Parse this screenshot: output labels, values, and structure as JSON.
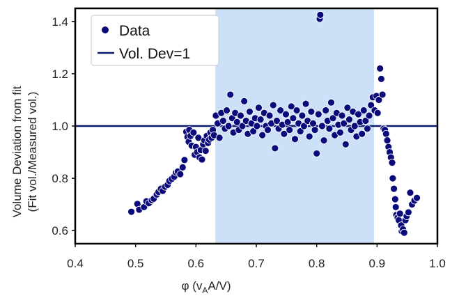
{
  "chart_data": {
    "type": "scatter",
    "xlabel_main": "φ (v",
    "xlabel_sub": "A",
    "xlabel_tail": "A/V)",
    "ylabel_line1": "Volume Deviation from fit",
    "ylabel_line2": "(Fit vol./Measured vol.)",
    "xlim": [
      0.4,
      1.0
    ],
    "ylim": [
      0.55,
      1.45
    ],
    "x_ticks": [
      0.4,
      0.5,
      0.6,
      0.7,
      0.8,
      0.9,
      1.0
    ],
    "x_tick_labels": [
      "0.4",
      "0.5",
      "0.6",
      "0.7",
      "0.8",
      "0.9",
      "1.0"
    ],
    "y_ticks": [
      0.6,
      0.8,
      1.0,
      1.2,
      1.4
    ],
    "y_tick_labels": [
      "0.6",
      "0.8",
      "1.0",
      "1.2",
      "1.4"
    ],
    "shaded_region": {
      "x_start": 0.632,
      "x_end": 0.895,
      "color": "#cce0f7"
    },
    "reference_line": {
      "y": 1.0,
      "name": "Vol. Dev=1",
      "color": "#0b1a6e"
    },
    "series": [
      {
        "name": "Data",
        "color": "#0a0a7a",
        "points": [
          [
            0.493,
            0.672
          ],
          [
            0.503,
            0.702
          ],
          [
            0.506,
            0.68
          ],
          [
            0.514,
            0.69
          ],
          [
            0.518,
            0.712
          ],
          [
            0.522,
            0.705
          ],
          [
            0.527,
            0.716
          ],
          [
            0.53,
            0.722
          ],
          [
            0.535,
            0.738
          ],
          [
            0.538,
            0.748
          ],
          [
            0.542,
            0.76
          ],
          [
            0.545,
            0.752
          ],
          [
            0.549,
            0.768
          ],
          [
            0.553,
            0.775
          ],
          [
            0.556,
            0.79
          ],
          [
            0.56,
            0.798
          ],
          [
            0.564,
            0.806
          ],
          [
            0.567,
            0.822
          ],
          [
            0.57,
            0.826
          ],
          [
            0.574,
            0.816
          ],
          [
            0.578,
            0.842
          ],
          [
            0.581,
            0.87
          ],
          [
            0.584,
            0.978
          ],
          [
            0.586,
            0.958
          ],
          [
            0.588,
            0.94
          ],
          [
            0.589,
            0.985
          ],
          [
            0.591,
            0.962
          ],
          [
            0.593,
            0.925
          ],
          [
            0.596,
            0.975
          ],
          [
            0.598,
            0.89
          ],
          [
            0.6,
            0.92
          ],
          [
            0.602,
            0.9
          ],
          [
            0.604,
            0.955
          ],
          [
            0.606,
            0.88
          ],
          [
            0.608,
            0.908
          ],
          [
            0.61,
            0.872
          ],
          [
            0.612,
            0.93
          ],
          [
            0.614,
            0.945
          ],
          [
            0.616,
            0.905
          ],
          [
            0.618,
            0.962
          ],
          [
            0.62,
            0.935
          ],
          [
            0.622,
            0.948
          ],
          [
            0.624,
            0.975
          ],
          [
            0.626,
            0.955
          ],
          [
            0.628,
            0.985
          ],
          [
            0.63,
            0.965
          ],
          [
            0.633,
            1.04
          ],
          [
            0.636,
            1.01
          ],
          [
            0.639,
            0.955
          ],
          [
            0.642,
            1.05
          ],
          [
            0.645,
            1.02
          ],
          [
            0.648,
            0.99
          ],
          [
            0.651,
            1.06
          ],
          [
            0.654,
            1.0
          ],
          [
            0.657,
            1.12
          ],
          [
            0.66,
            1.03
          ],
          [
            0.662,
            0.975
          ],
          [
            0.665,
            1.05
          ],
          [
            0.668,
            1.015
          ],
          [
            0.671,
            0.985
          ],
          [
            0.674,
            1.04
          ],
          [
            0.677,
            1.0
          ],
          [
            0.68,
            1.095
          ],
          [
            0.683,
            1.02
          ],
          [
            0.686,
            0.97
          ],
          [
            0.689,
            1.055
          ],
          [
            0.692,
            1.01
          ],
          [
            0.695,
            0.98
          ],
          [
            0.698,
            1.03
          ],
          [
            0.701,
            1.0
          ],
          [
            0.704,
            1.07
          ],
          [
            0.707,
            1.025
          ],
          [
            0.71,
            0.965
          ],
          [
            0.713,
            1.05
          ],
          [
            0.716,
            1.0
          ],
          [
            0.719,
            0.985
          ],
          [
            0.722,
            1.04
          ],
          [
            0.725,
            1.01
          ],
          [
            0.728,
            1.08
          ],
          [
            0.731,
            0.915
          ],
          [
            0.734,
            1.02
          ],
          [
            0.737,
            0.99
          ],
          [
            0.74,
            1.06
          ],
          [
            0.743,
            1.005
          ],
          [
            0.746,
            0.97
          ],
          [
            0.749,
            1.045
          ],
          [
            0.752,
            1.015
          ],
          [
            0.755,
            0.985
          ],
          [
            0.758,
            1.075
          ],
          [
            0.761,
            1.03
          ],
          [
            0.764,
            0.95
          ],
          [
            0.767,
            1.06
          ],
          [
            0.77,
            1.01
          ],
          [
            0.773,
            0.98
          ],
          [
            0.776,
            1.04
          ],
          [
            0.779,
            1.0
          ],
          [
            0.782,
            1.085
          ],
          [
            0.785,
            1.02
          ],
          [
            0.788,
            0.96
          ],
          [
            0.791,
            1.055
          ],
          [
            0.794,
            1.01
          ],
          [
            0.797,
            0.985
          ],
          [
            0.8,
            0.895
          ],
          [
            0.803,
            1.045
          ],
          [
            0.805,
            1.41
          ],
          [
            0.806,
            1.425
          ],
          [
            0.809,
            1.0
          ],
          [
            0.812,
            0.945
          ],
          [
            0.815,
            1.06
          ],
          [
            0.818,
            1.02
          ],
          [
            0.821,
            0.99
          ],
          [
            0.824,
            1.09
          ],
          [
            0.827,
            1.03
          ],
          [
            0.83,
            0.965
          ],
          [
            0.833,
            1.05
          ],
          [
            0.836,
            1.005
          ],
          [
            0.839,
            0.975
          ],
          [
            0.842,
            1.04
          ],
          [
            0.845,
            1.01
          ],
          [
            0.848,
            0.93
          ],
          [
            0.851,
            1.07
          ],
          [
            0.854,
            1.025
          ],
          [
            0.857,
            0.985
          ],
          [
            0.86,
            1.055
          ],
          [
            0.863,
            1.0
          ],
          [
            0.866,
            0.96
          ],
          [
            0.869,
            1.045
          ],
          [
            0.872,
            1.015
          ],
          [
            0.875,
            0.97
          ],
          [
            0.878,
            1.06
          ],
          [
            0.881,
            1.02
          ],
          [
            0.884,
            0.99
          ],
          [
            0.887,
            1.04
          ],
          [
            0.89,
            1.08
          ],
          [
            0.893,
            1.11
          ],
          [
            0.896,
            1.06
          ],
          [
            0.899,
            1.115
          ],
          [
            0.901,
            1.05
          ],
          [
            0.903,
            1.1
          ],
          [
            0.905,
            1.22
          ],
          [
            0.907,
            1.18
          ],
          [
            0.909,
            1.12
          ],
          [
            0.911,
            0.99
          ],
          [
            0.913,
            0.985
          ],
          [
            0.915,
            0.97
          ],
          [
            0.917,
            0.945
          ],
          [
            0.919,
            0.92
          ],
          [
            0.921,
            0.9
          ],
          [
            0.923,
            0.88
          ],
          [
            0.925,
            0.86
          ],
          [
            0.926,
            0.8
          ],
          [
            0.928,
            0.76
          ],
          [
            0.93,
            0.72
          ],
          [
            0.931,
            0.69
          ],
          [
            0.932,
            0.66
          ],
          [
            0.934,
            0.65
          ],
          [
            0.936,
            0.64
          ],
          [
            0.938,
            0.665
          ],
          [
            0.94,
            0.62
          ],
          [
            0.941,
            0.598
          ],
          [
            0.943,
            0.605
          ],
          [
            0.945,
            0.592
          ],
          [
            0.947,
            0.64
          ],
          [
            0.949,
            0.655
          ],
          [
            0.952,
            0.67
          ],
          [
            0.955,
            0.745
          ],
          [
            0.958,
            0.7
          ],
          [
            0.962,
            0.715
          ],
          [
            0.966,
            0.725
          ]
        ]
      }
    ],
    "legend": {
      "placement": "top-left",
      "entries": [
        "Data",
        "Vol. Dev=1"
      ]
    }
  }
}
